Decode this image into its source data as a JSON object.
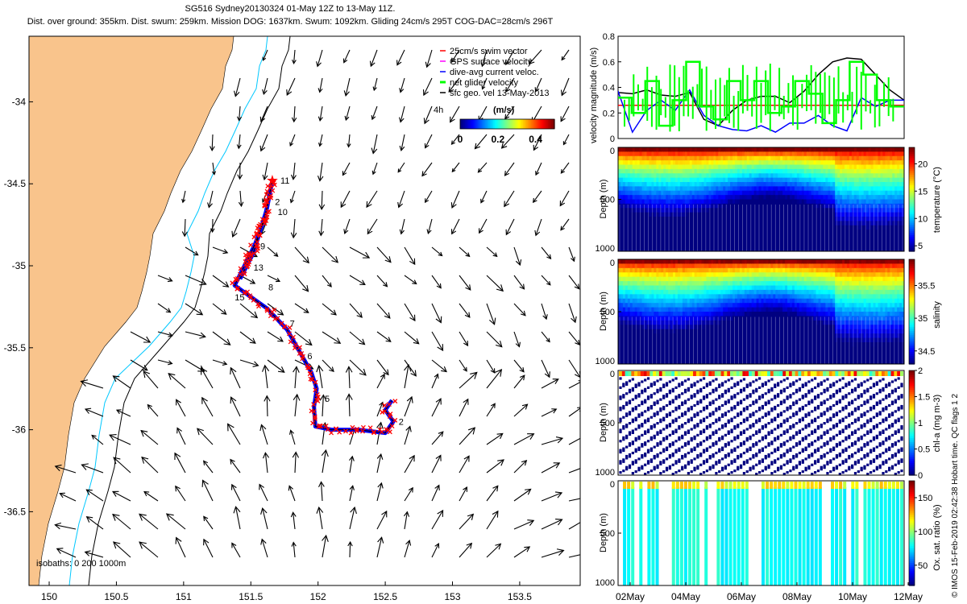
{
  "header": {
    "title_line1": "SG516 Sydney20130324 01-May 12Z to 13-May 11Z.",
    "title_line2": "Dist. over ground: 355km. Dist. swum: 259km. Mission DOG: 1637km. Swum: 1092km. Gliding 24cm/s 295T COG-DAC=28cm/s 296T"
  },
  "footer": {
    "credit": "© IMOS 15-Feb-2019 02:42:38 Hobart time. QC flags 1  2"
  },
  "colors": {
    "land": "#f9c48c",
    "swim": "#ff0000",
    "gps": "#ff00ff",
    "dac": "#0000ff",
    "net": "#00ff00",
    "geo": "#000000",
    "isobath_200": "#00c8ff"
  },
  "chart_data": [
    {
      "type": "map",
      "xlim": [
        149.85,
        153.95
      ],
      "ylim": [
        -36.95,
        -33.6
      ],
      "x_ticks": [
        150,
        150.5,
        151,
        151.5,
        152,
        152.5,
        153,
        153.5
      ],
      "x_tick_labels": [
        "150",
        "150.5",
        "151",
        "151.5",
        "152",
        "152.5",
        "153",
        "153.5"
      ],
      "y_ticks": [
        -34,
        -34.5,
        -35,
        -35.5,
        -36,
        -36.5
      ],
      "y_tick_labels": [
        "-34",
        "-34.5",
        "-35",
        "-35.5",
        "-36",
        "-36.5"
      ],
      "legend": {
        "position": "top-right",
        "entries": [
          {
            "label": "25cm/s swim vector",
            "color": "#ff0000"
          },
          {
            "label": "GPS surface velocity",
            "color": "#ff00ff"
          },
          {
            "label": "dive-avg current veloc.",
            "color": "#0000ff"
          },
          {
            "label": "net glider velocity",
            "color": "#00ff00"
          },
          {
            "label": "sfc geo. vel 13-May-2013",
            "color": "#000000"
          }
        ]
      },
      "scale_label": "4h",
      "colorbar": {
        "label": "(m/s)",
        "ticks": [
          "0",
          "0.2",
          "0.4"
        ],
        "range": [
          0,
          0.5
        ]
      },
      "isobaths_label": "isobaths: 0   200   1000m",
      "track": [
        [
          152.55,
          -35.82
        ],
        [
          152.5,
          -35.88
        ],
        [
          152.56,
          -35.95
        ],
        [
          152.5,
          -36.02
        ],
        [
          152.3,
          -36.0
        ],
        [
          152.1,
          -36.0
        ],
        [
          151.98,
          -35.98
        ],
        [
          151.97,
          -35.86
        ],
        [
          151.99,
          -35.75
        ],
        [
          151.95,
          -35.65
        ],
        [
          151.86,
          -35.52
        ],
        [
          151.77,
          -35.39
        ],
        [
          151.62,
          -35.26
        ],
        [
          151.38,
          -35.12
        ],
        [
          151.44,
          -35.02
        ],
        [
          151.53,
          -34.87
        ],
        [
          151.6,
          -34.72
        ],
        [
          151.66,
          -34.48
        ],
        [
          151.62,
          -34.65
        ],
        [
          151.52,
          -34.92
        ],
        [
          151.42,
          -35.08
        ]
      ],
      "day_labels": [
        {
          "text": "11",
          "lon": 151.72,
          "lat": -34.5
        },
        {
          "text": "2",
          "lon": 151.68,
          "lat": -34.63
        },
        {
          "text": "10",
          "lon": 151.7,
          "lat": -34.69
        },
        {
          "text": "9",
          "lon": 151.57,
          "lat": -34.9
        },
        {
          "text": "13",
          "lon": 151.52,
          "lat": -35.03
        },
        {
          "text": "15",
          "lon": 151.38,
          "lat": -35.21
        },
        {
          "text": "8",
          "lon": 151.63,
          "lat": -35.15
        },
        {
          "text": "7",
          "lon": 151.79,
          "lat": -35.37
        },
        {
          "text": "6",
          "lon": 151.92,
          "lat": -35.57
        },
        {
          "text": "5",
          "lon": 152.05,
          "lat": -35.83
        },
        {
          "text": "2",
          "lon": 152.6,
          "lat": -35.97
        }
      ]
    },
    {
      "type": "line",
      "ylabel": "velocity magnitude (m/s)",
      "ylim": [
        0,
        0.8
      ],
      "y_ticks": [
        "0",
        "0.2",
        "0.4",
        "0.6",
        "0.8"
      ],
      "series": [
        {
          "color": "#ff0000",
          "values": [
            0.26,
            0.26
          ]
        },
        {
          "color": "#000000",
          "values": [
            0.36,
            0.35,
            0.38,
            0.34,
            0.33,
            0.36,
            0.15,
            0.1,
            0.22,
            0.3,
            0.33,
            0.33,
            0.28,
            0.37,
            0.5,
            0.6,
            0.63,
            0.62,
            0.5,
            0.38,
            0.3
          ]
        },
        {
          "color": "#0000ff",
          "values": [
            0.37,
            0.05,
            0.22,
            0.3,
            0.22,
            0.38,
            0.18,
            0.1,
            0.07,
            0.06,
            0.1,
            0.05,
            0.12,
            0.12,
            0.18,
            0.1,
            0.06,
            0.32,
            0.25,
            0.3,
            0.3
          ]
        },
        {
          "color": "#00ff00",
          "values": [
            0.32,
            0.2,
            0.45,
            0.1,
            0.3,
            0.6,
            0.25,
            0.15,
            0.45,
            0.3,
            0.45,
            0.2,
            0.25,
            0.45,
            0.35,
            0.12,
            0.3,
            0.6,
            0.5,
            0.3,
            0.25
          ]
        }
      ]
    },
    {
      "type": "heatmap",
      "ylabel": "Depth (m)",
      "ylim": [
        1000,
        0
      ],
      "y_ticks": [
        "0",
        "500",
        "1000"
      ],
      "colorbar_label": "temperature (°C)",
      "colorbar_ticks": [
        "5",
        "10",
        "15",
        "20"
      ],
      "colorbar_range": [
        4,
        23
      ]
    },
    {
      "type": "heatmap",
      "ylabel": "Depth (m)",
      "ylim": [
        1000,
        0
      ],
      "y_ticks": [
        "0",
        "500",
        "1000"
      ],
      "colorbar_label": "salinity",
      "colorbar_ticks": [
        "34.5",
        "35",
        "35.5"
      ],
      "colorbar_range": [
        34.3,
        35.9
      ]
    },
    {
      "type": "scatter",
      "ylabel": "Depth (m)",
      "ylim": [
        1000,
        0
      ],
      "y_ticks": [
        "0",
        "500",
        "1000"
      ],
      "colorbar_label": "chl-a (mg m-3)",
      "colorbar_ticks": [
        "0",
        "0.5",
        "1",
        "1.5",
        "2"
      ],
      "colorbar_range": [
        0,
        2
      ]
    },
    {
      "type": "heatmap",
      "ylabel": "Depth (m)",
      "ylim": [
        1000,
        0
      ],
      "y_ticks": [
        "0",
        "500",
        "1000"
      ],
      "colorbar_label": "Ox. sat. ratio (%)",
      "colorbar_ticks": [
        "50",
        "100",
        "150"
      ],
      "colorbar_range": [
        20,
        175
      ],
      "x_tick_labels": [
        "02May",
        "04May",
        "06May",
        "08May",
        "10May",
        "12May"
      ]
    }
  ]
}
